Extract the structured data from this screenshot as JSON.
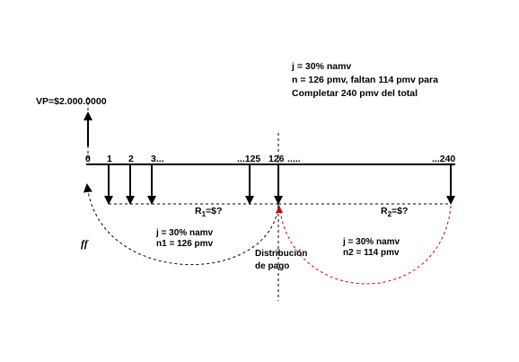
{
  "info": {
    "line1": "j = 30% namv",
    "line2": "n = 126 pmv, faltan 114 pmv  para",
    "line3": "Completar 240 pmv del total"
  },
  "vp_label": "VP=$2.000.0000",
  "timeline": {
    "tick_labels": [
      "0",
      "1",
      "2",
      "3...",
      "...125",
      "126",
      ".....",
      "...240"
    ]
  },
  "payment_labels": {
    "r1_base": "R",
    "r1_sub": "1",
    "r1_tail": "=$?",
    "r2_base": "R",
    "r2_sub": "2",
    "r2_tail": "=$?"
  },
  "ff_label": "ff",
  "segment1": {
    "rate": "j = 30% namv",
    "periods": "n1 = 126 pmv"
  },
  "segment2": {
    "rate": "j = 30% namv",
    "periods": "n2 = 114 pmv"
  },
  "distribution": {
    "line1": "Distribución",
    "line2": "de pago"
  },
  "colors": {
    "line": "#000000",
    "arc_left": "#000000",
    "arc_right": "#cc0000"
  }
}
